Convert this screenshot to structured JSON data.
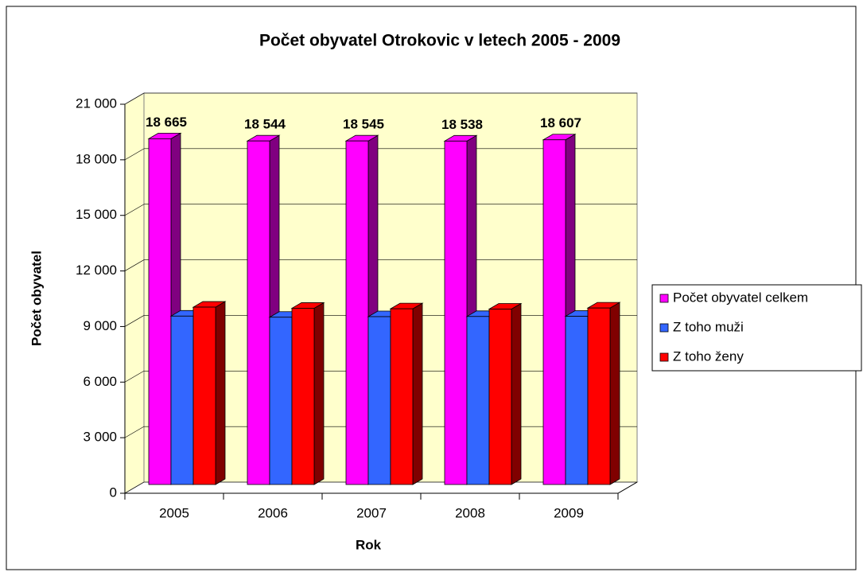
{
  "chart_data": {
    "type": "bar3d",
    "title": "Počet obyvatel Otrokovic v letech 2005 - 2009",
    "x_label": "Rok",
    "y_label": "Počet obyvatel",
    "categories": [
      "2005",
      "2006",
      "2007",
      "2008",
      "2009"
    ],
    "series": [
      {
        "name": "Počet obyvatel celkem",
        "color": "#ff00ff",
        "side_color": "#800080",
        "values": [
          18665,
          18544,
          18545,
          18538,
          18607
        ],
        "value_labels": [
          "18 665",
          "18 544",
          "18 545",
          "18 538",
          "18 607"
        ]
      },
      {
        "name": "Z toho muži",
        "color": "#3366ff",
        "side_color": "#000080",
        "values": [
          9090,
          9030,
          9060,
          9070,
          9080
        ]
      },
      {
        "name": "Z toho ženy",
        "color": "#ff0000",
        "side_color": "#800000",
        "values": [
          9575,
          9514,
          9485,
          9468,
          9527
        ]
      }
    ],
    "ylim": [
      0,
      21000
    ],
    "yticks": [
      0,
      {
        "value": 3000,
        "label": "3 000"
      },
      {
        "value": 6000,
        "label": "6 000"
      },
      {
        "value": 9000,
        "label": "9 000"
      },
      {
        "value": 12000,
        "label": "12 000"
      },
      {
        "value": 15000,
        "label": "15 000"
      },
      {
        "value": 18000,
        "label": "18 000"
      },
      {
        "value": 21000,
        "label": "21 000"
      }
    ],
    "grid": true,
    "legend": "right",
    "wall_color": "#ffffcc"
  }
}
